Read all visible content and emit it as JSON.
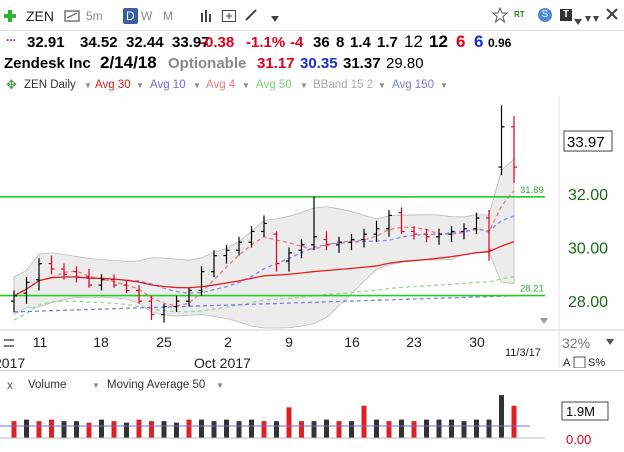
{
  "toolbar": {
    "symbol": "ZEN",
    "intervals": [
      "5m",
      "D",
      "W",
      "M"
    ],
    "selected_interval": "D",
    "right_badges": [
      "RT",
      "S",
      "T"
    ]
  },
  "quote": {
    "dots": "...",
    "last": "32.91",
    "high": "34.52",
    "low": "32.44",
    "close": "33.97",
    "change": "-0.38",
    "change_pct": "-1.1%",
    "v1": "-4",
    "v2": "36",
    "v3": "8",
    "v4": "1.4",
    "v5": "1.7",
    "v6": "12",
    "v7": "12",
    "v8": "6",
    "v9": "6",
    "v10": "0.96"
  },
  "info": {
    "company": "Zendesk Inc",
    "date": "2/14/18",
    "optionable": "Optionable",
    "p1": "31.17",
    "p2": "30.35",
    "p3": "31.37",
    "p4": "29.80"
  },
  "studies": {
    "name": "ZEN Daily",
    "avg30": "Avg 30",
    "avg10": "Avg 10",
    "avg4": "Avg 4",
    "avg50": "Avg 50",
    "bband": "BBand 15 2",
    "avg150": "Avg 150"
  },
  "chart_data": {
    "type": "candlestick",
    "x_labels": [
      "11",
      "18",
      "25",
      "2",
      "9",
      "16",
      "23",
      "30"
    ],
    "month_label": "Oct 2017",
    "year_label": "2017",
    "date_label": "11/3/17",
    "pct_label": "32%",
    "y_ticks": [
      "32.00",
      "30.00",
      "28.00"
    ],
    "ylim": [
      27,
      35.5
    ],
    "last_price_label": "33.97",
    "hlines": [
      {
        "value": 31.89,
        "label": "31.89",
        "color": "#22cc22"
      },
      {
        "value": 28.21,
        "label": "28.21",
        "color": "#22cc22"
      }
    ],
    "bars": [
      {
        "o": 28.0,
        "h": 28.4,
        "l": 27.6,
        "c": 28.2,
        "up": true
      },
      {
        "o": 28.3,
        "h": 28.9,
        "l": 27.9,
        "c": 28.7,
        "up": true
      },
      {
        "o": 28.8,
        "h": 29.6,
        "l": 28.4,
        "c": 29.4,
        "up": true
      },
      {
        "o": 29.4,
        "h": 29.7,
        "l": 29.0,
        "c": 29.2,
        "up": false
      },
      {
        "o": 29.2,
        "h": 29.4,
        "l": 28.8,
        "c": 29.0,
        "up": false
      },
      {
        "o": 29.1,
        "h": 29.3,
        "l": 28.7,
        "c": 28.9,
        "up": false
      },
      {
        "o": 28.9,
        "h": 29.2,
        "l": 28.5,
        "c": 28.6,
        "up": false
      },
      {
        "o": 28.6,
        "h": 29.0,
        "l": 28.4,
        "c": 28.8,
        "up": true
      },
      {
        "o": 28.8,
        "h": 29.0,
        "l": 28.5,
        "c": 28.6,
        "up": false
      },
      {
        "o": 28.6,
        "h": 28.8,
        "l": 28.3,
        "c": 28.4,
        "up": false
      },
      {
        "o": 28.4,
        "h": 28.6,
        "l": 27.9,
        "c": 28.0,
        "up": false
      },
      {
        "o": 28.0,
        "h": 28.2,
        "l": 27.3,
        "c": 27.5,
        "up": false
      },
      {
        "o": 27.5,
        "h": 27.9,
        "l": 27.2,
        "c": 27.8,
        "up": true
      },
      {
        "o": 27.8,
        "h": 28.2,
        "l": 27.6,
        "c": 28.0,
        "up": true
      },
      {
        "o": 28.0,
        "h": 28.5,
        "l": 27.8,
        "c": 28.4,
        "up": true
      },
      {
        "o": 28.4,
        "h": 29.3,
        "l": 28.2,
        "c": 29.1,
        "up": true
      },
      {
        "o": 29.1,
        "h": 29.9,
        "l": 28.9,
        "c": 29.7,
        "up": true
      },
      {
        "o": 29.7,
        "h": 30.1,
        "l": 29.4,
        "c": 29.9,
        "up": true
      },
      {
        "o": 29.9,
        "h": 30.4,
        "l": 29.7,
        "c": 30.2,
        "up": true
      },
      {
        "o": 30.2,
        "h": 30.8,
        "l": 30.0,
        "c": 30.6,
        "up": true
      },
      {
        "o": 30.6,
        "h": 31.2,
        "l": 30.4,
        "c": 30.9,
        "up": true
      },
      {
        "o": 30.5,
        "h": 30.6,
        "l": 29.1,
        "c": 29.4,
        "up": false
      },
      {
        "o": 29.5,
        "h": 30.0,
        "l": 29.1,
        "c": 29.8,
        "up": true
      },
      {
        "o": 29.9,
        "h": 30.3,
        "l": 29.6,
        "c": 30.1,
        "up": true
      },
      {
        "o": 30.1,
        "h": 31.9,
        "l": 29.9,
        "c": 30.4,
        "up": true
      },
      {
        "o": 30.3,
        "h": 30.6,
        "l": 29.9,
        "c": 30.1,
        "up": false
      },
      {
        "o": 30.1,
        "h": 30.4,
        "l": 29.8,
        "c": 30.2,
        "up": true
      },
      {
        "o": 30.2,
        "h": 30.5,
        "l": 29.9,
        "c": 30.3,
        "up": true
      },
      {
        "o": 30.3,
        "h": 30.7,
        "l": 30.0,
        "c": 30.5,
        "up": true
      },
      {
        "o": 30.5,
        "h": 31.0,
        "l": 30.2,
        "c": 30.7,
        "up": true
      },
      {
        "o": 30.7,
        "h": 31.4,
        "l": 30.4,
        "c": 31.2,
        "up": true
      },
      {
        "o": 31.3,
        "h": 31.5,
        "l": 30.5,
        "c": 30.6,
        "up": false
      },
      {
        "o": 30.6,
        "h": 30.8,
        "l": 30.3,
        "c": 30.5,
        "up": false
      },
      {
        "o": 30.5,
        "h": 30.7,
        "l": 30.2,
        "c": 30.4,
        "up": false
      },
      {
        "o": 30.4,
        "h": 30.7,
        "l": 30.1,
        "c": 30.5,
        "up": true
      },
      {
        "o": 30.5,
        "h": 30.8,
        "l": 30.2,
        "c": 30.6,
        "up": true
      },
      {
        "o": 30.6,
        "h": 30.9,
        "l": 30.3,
        "c": 30.7,
        "up": true
      },
      {
        "o": 30.7,
        "h": 31.3,
        "l": 30.5,
        "c": 31.1,
        "up": true
      },
      {
        "o": 31.1,
        "h": 31.4,
        "l": 29.5,
        "c": 29.9,
        "up": false
      },
      {
        "o": 33.0,
        "h": 35.3,
        "l": 32.7,
        "c": 34.5,
        "up": true
      },
      {
        "o": 34.5,
        "h": 34.9,
        "l": 32.4,
        "c": 33.0,
        "up": false
      }
    ]
  },
  "volume": {
    "label": "Volume",
    "ma_label": "Moving Average 50",
    "ticks": [
      "1.9M",
      "0.00"
    ],
    "values": [
      0.55,
      0.6,
      0.55,
      0.6,
      0.55,
      0.55,
      0.5,
      0.6,
      0.55,
      0.5,
      0.6,
      0.55,
      0.55,
      0.5,
      0.6,
      0.6,
      0.55,
      0.6,
      0.55,
      0.6,
      0.55,
      0.55,
      1.0,
      0.55,
      0.55,
      0.6,
      0.55,
      0.55,
      1.05,
      0.6,
      0.55,
      0.6,
      0.55,
      0.6,
      0.6,
      0.6,
      0.55,
      0.6,
      0.6,
      1.4,
      1.05
    ],
    "colors": [
      "r",
      "k",
      "r",
      "r",
      "k",
      "k",
      "r",
      "k",
      "r",
      "k",
      "r",
      "r",
      "k",
      "k",
      "r",
      "k",
      "k",
      "k",
      "k",
      "k",
      "r",
      "k",
      "r",
      "r",
      "k",
      "k",
      "r",
      "k",
      "r",
      "k",
      "r",
      "k",
      "r",
      "k",
      "k",
      "k",
      "k",
      "k",
      "k",
      "k",
      "r"
    ]
  }
}
